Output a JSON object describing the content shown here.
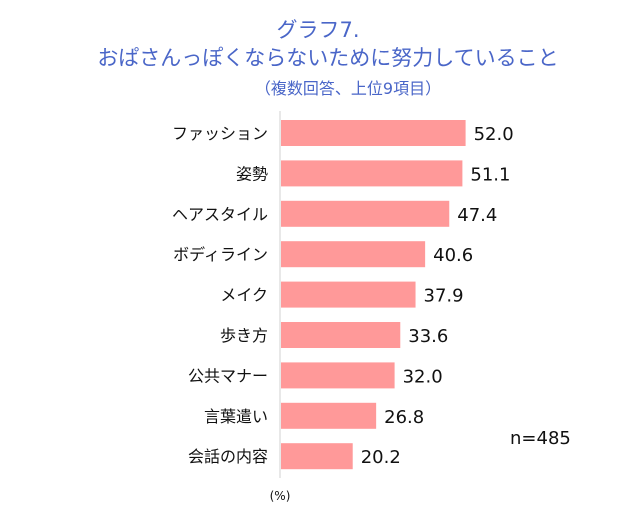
{
  "chart_data": {
    "type": "bar",
    "orientation": "horizontal",
    "title": "グラフ7.",
    "subtitle": "おぱさんっぽくならないために努力していること",
    "subtitle2": "（複数回答、上位9項目）",
    "categories": [
      "ファッション",
      "姿勢",
      "ヘアスタイル",
      "ボディライン",
      "メイク",
      "歩き方",
      "公共マナー",
      "言葉遣い",
      "会話の内容"
    ],
    "values": [
      52.0,
      51.1,
      47.4,
      40.6,
      37.9,
      33.6,
      32.0,
      26.8,
      20.2
    ],
    "value_labels": [
      "52.0",
      "51.1",
      "47.4",
      "40.6",
      "37.9",
      "33.6",
      "32.0",
      "26.8",
      "20.2"
    ],
    "unit_label": "(%)",
    "note": "n=485",
    "xlim": [
      0,
      100
    ],
    "grid": false,
    "bar_color": "#ff9999",
    "axis_color": "#d0d0d0"
  }
}
